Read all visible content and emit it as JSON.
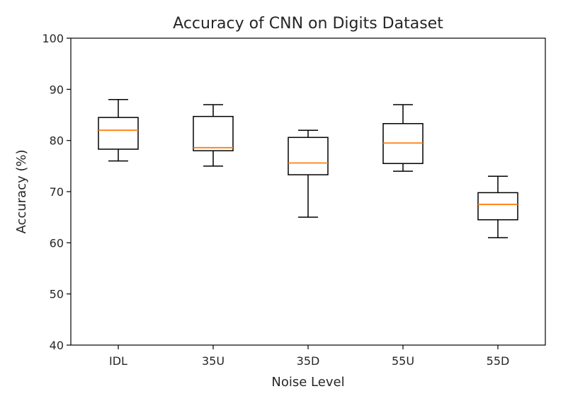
{
  "chart_data": {
    "type": "box",
    "title": "Accuracy of CNN on Digits Dataset",
    "xlabel": "Noise Level",
    "ylabel": "Accuracy (%)",
    "ylim": [
      40,
      100
    ],
    "yticks": [
      40,
      50,
      60,
      70,
      80,
      90,
      100
    ],
    "categories": [
      "IDL",
      "35U",
      "35D",
      "55U",
      "55D"
    ],
    "boxes": [
      {
        "whislo": 76,
        "q1": 78.3,
        "med": 82,
        "q3": 84.5,
        "whishi": 88
      },
      {
        "whislo": 75,
        "q1": 78,
        "med": 78.6,
        "q3": 84.7,
        "whishi": 87
      },
      {
        "whislo": 65,
        "q1": 73.3,
        "med": 75.6,
        "q3": 80.6,
        "whishi": 82
      },
      {
        "whislo": 74,
        "q1": 75.5,
        "med": 79.5,
        "q3": 83.3,
        "whishi": 87
      },
      {
        "whislo": 61,
        "q1": 64.5,
        "med": 67.5,
        "q3": 69.8,
        "whishi": 73
      }
    ],
    "grid": false,
    "colors": {
      "box": "#000000",
      "median": "#ff7f0e",
      "text": "#262626"
    }
  }
}
